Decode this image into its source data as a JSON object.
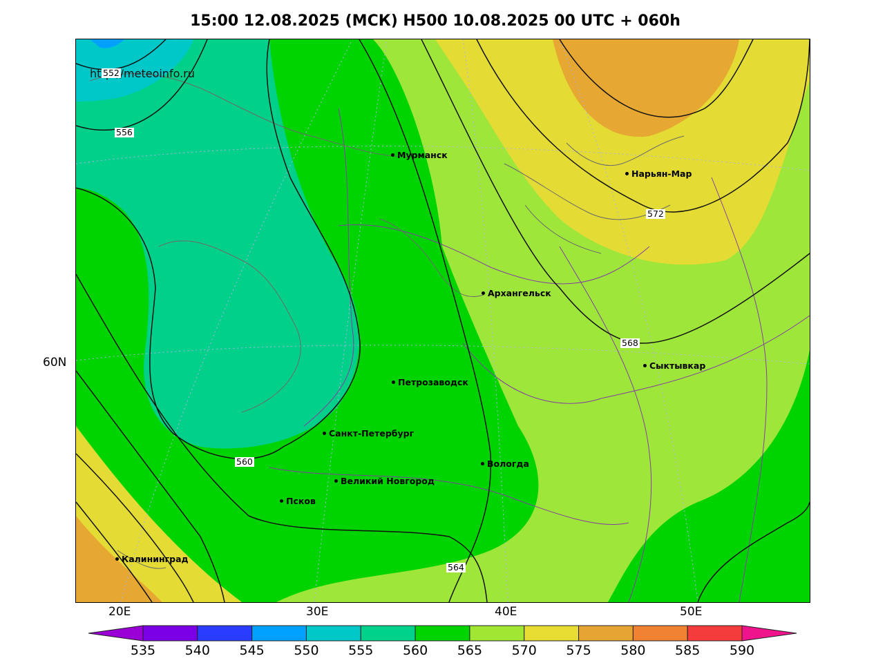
{
  "title": "15:00 12.08.2025 (МСК) H500  10.08.2025 00 UTC + 060h",
  "source": "http://meteoinfo.ru",
  "x_ticks": [
    "20E",
    "30E",
    "40E",
    "50E"
  ],
  "y_ticks": [
    "60N"
  ],
  "cities": [
    {
      "name": "Мурманск"
    },
    {
      "name": "Нарьян-Мар"
    },
    {
      "name": "Архангельск"
    },
    {
      "name": "Сыктывкар"
    },
    {
      "name": "Петрозаводск"
    },
    {
      "name": "Санкт-Петербург"
    },
    {
      "name": "Вологда"
    },
    {
      "name": "Великий Новгород"
    },
    {
      "name": "Псков"
    },
    {
      "name": "Калининград"
    }
  ],
  "contours": [
    "552",
    "556",
    "560",
    "564",
    "568",
    "572"
  ],
  "colorbar": {
    "labels": [
      "535",
      "540",
      "545",
      "550",
      "555",
      "560",
      "565",
      "570",
      "575",
      "580",
      "585",
      "590"
    ],
    "colors": [
      "#9a00d6",
      "#7b00e6",
      "#2a3cff",
      "#00a0ff",
      "#00c8c8",
      "#00d28c",
      "#00d400",
      "#a0e632",
      "#e6dc32",
      "#e6a532",
      "#f08232",
      "#f53c3c",
      "#f0148c"
    ]
  }
}
